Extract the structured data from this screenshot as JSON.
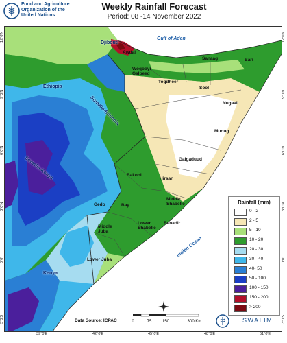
{
  "header": {
    "org_line1": "Food and Agriculture",
    "org_line2": "Organization of the",
    "org_line3": "United Nations",
    "title": "Weekly Rainfall Forecast",
    "subtitle": "Period: 08 -14 November 2022"
  },
  "map": {
    "seas": {
      "gulf": "Gulf of Aden",
      "ocean": "Indian Ocean"
    },
    "countries": {
      "ethiopia": "Ethiopia",
      "kenya": "Kenya",
      "somaliland_dji": "Djibouti"
    },
    "regions": {
      "awdal": "Awdal",
      "woqooyi": "Woqooyi\nGalbeed",
      "togdheer": "Togdheer",
      "sanaag": "Sanaag",
      "bari": "Bari",
      "sool": "Sool",
      "nugaal": "Nugaal",
      "mudug": "Mudug",
      "galgaduud": "Galgaduud",
      "hiraan": "Hiraan",
      "bakool": "Bakool",
      "gedo": "Gedo",
      "bay": "Bay",
      "middle_shabelle": "Middle\nShabelle",
      "banadir": "Banadir",
      "lower_shabelle": "Lower\nShabelle",
      "middle_juba": "Middle\nJuba",
      "lower_juba": "Lower Juba"
    },
    "boundary_labels": {
      "somali_ethiopia": "Somalia-Ethiopia",
      "somali_kenya": "Somalia-Kenya"
    },
    "ticks_bottom": [
      "39°0'E",
      "42°0'E",
      "45°0'E",
      "48°0'E",
      "51°0'E"
    ],
    "ticks_left": [
      "12°0'N",
      "9°0'N",
      "6°0'N",
      "3°0'N",
      "0°0'",
      "3°0'S"
    ],
    "ticks_right": [
      "12°0'N",
      "9°0'N",
      "6°0'N",
      "3°0'N",
      "0°0'",
      "3°0'S"
    ]
  },
  "legend": {
    "title": "Rainfall (mm)",
    "classes": [
      {
        "label": "0 - 2",
        "color": "#ffffff"
      },
      {
        "label": "2 - 5",
        "color": "#f6e7b6"
      },
      {
        "label": "5 - 10",
        "color": "#a8e07a"
      },
      {
        "label": "10 - 20",
        "color": "#2e9c2e"
      },
      {
        "label": "20 - 30",
        "color": "#a6dcf0"
      },
      {
        "label": "30 - 40",
        "color": "#3fb7ea"
      },
      {
        "label": "40- 50",
        "color": "#2a7fd4"
      },
      {
        "label": "50 - 100",
        "color": "#1b3fc4"
      },
      {
        "label": "100 - 150",
        "color": "#4b1f9c"
      },
      {
        "label": "150 - 200",
        "color": "#b2102a"
      },
      {
        "label": "> 200",
        "color": "#7a0a12"
      }
    ]
  },
  "footer": {
    "data_source": "Data Source: ICPAC",
    "scale_labels": [
      "0",
      "75",
      "150",
      "300 Km"
    ],
    "swalim": "SWALIM"
  }
}
